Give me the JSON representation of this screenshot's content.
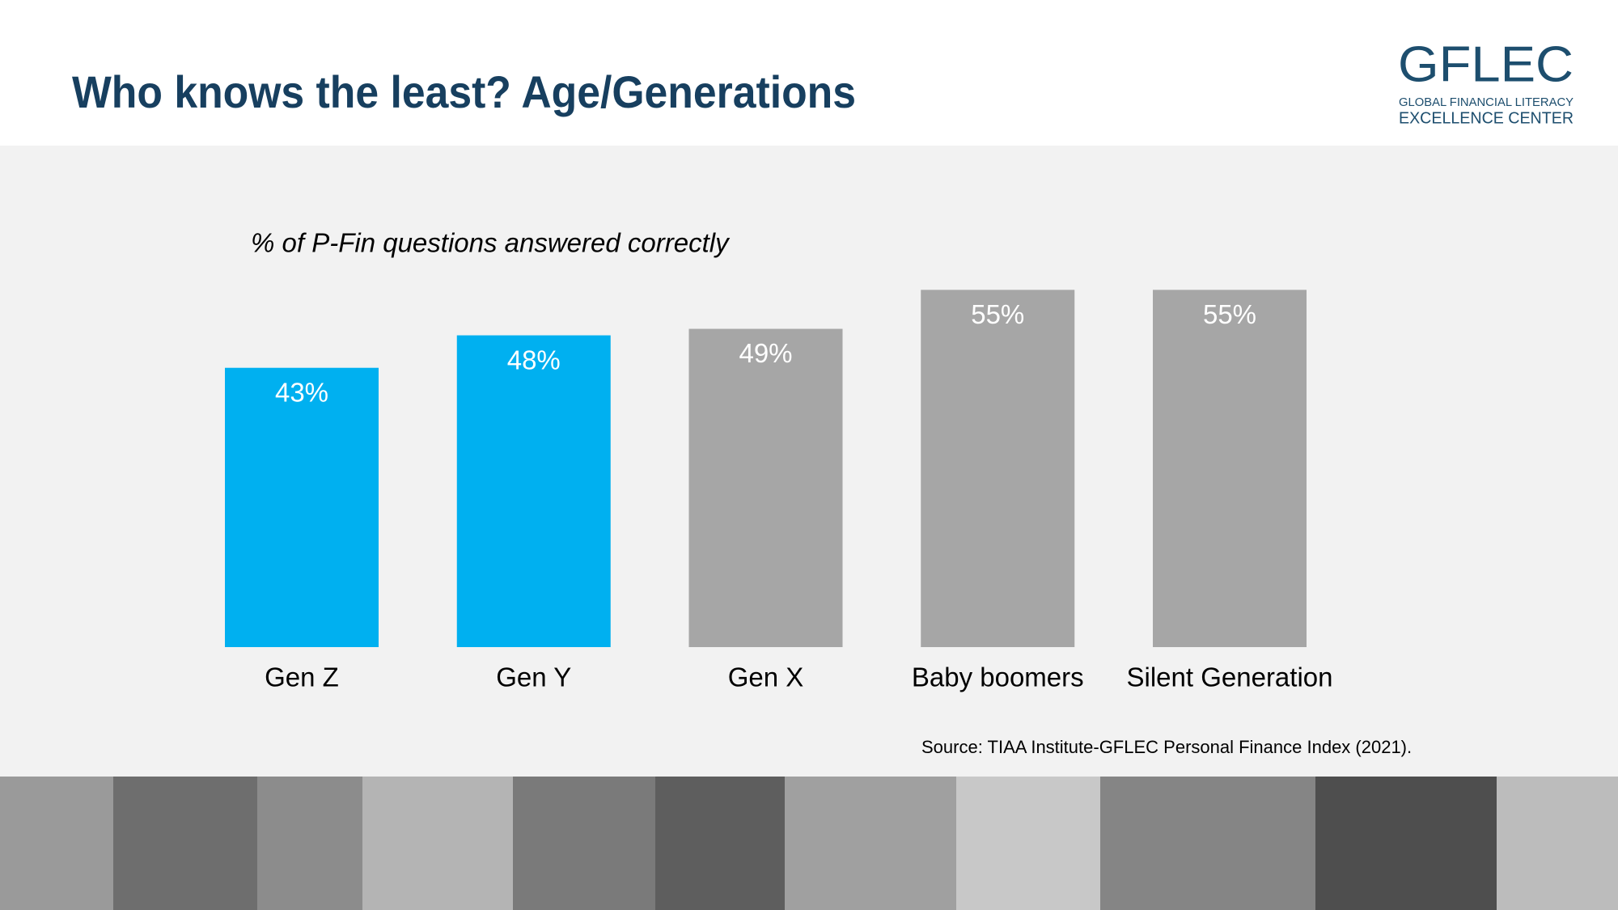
{
  "chart_data": {
    "type": "bar",
    "title": "Who knows the least? Age/Generations",
    "subtitle": "% of P-Fin questions answered correctly",
    "categories": [
      "Gen Z",
      "Gen Y",
      "Gen X",
      "Baby boomers",
      "Silent Generation"
    ],
    "values": [
      43,
      48,
      49,
      55,
      55
    ],
    "value_labels": [
      "43%",
      "48%",
      "49%",
      "55%",
      "55%"
    ],
    "colors": [
      "#00b0f0",
      "#00b0f0",
      "#a6a6a6",
      "#a6a6a6",
      "#a6a6a6"
    ],
    "source": "Source: TIAA Institute-GFLEC Personal Finance Index (2021)."
  },
  "logo": {
    "name": "GFLEC",
    "line1": "GLOBAL FINANCIAL LITERACY",
    "line2": "EXCELLENCE CENTER"
  }
}
